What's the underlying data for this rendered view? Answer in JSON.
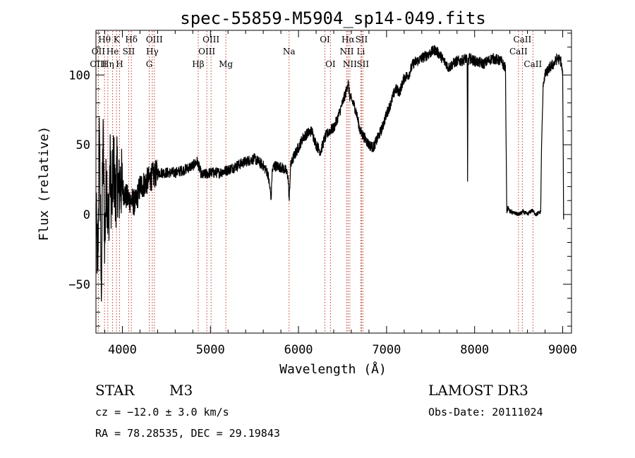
{
  "chart_data": {
    "type": "line",
    "title": "spec-55859-M5904_sp14-049.fits",
    "xlabel": "Wavelength (Å)",
    "ylabel": "Flux (relative)",
    "xlim": [
      3700,
      9100
    ],
    "ylim": [
      -85,
      132
    ],
    "x_ticks": [
      4000,
      5000,
      6000,
      7000,
      8000,
      9000
    ],
    "y_ticks": [
      -50,
      0,
      50,
      100
    ],
    "grid": false,
    "series": [
      {
        "name": "flux",
        "x": [
          3700,
          3720,
          3740,
          3760,
          3780,
          3800,
          3820,
          3840,
          3860,
          3880,
          3900,
          3920,
          3940,
          3960,
          3980,
          4000,
          4050,
          4100,
          4150,
          4200,
          4250,
          4300,
          4350,
          4400,
          4500,
          4600,
          4700,
          4800,
          4850,
          4900,
          5000,
          5100,
          5200,
          5300,
          5400,
          5500,
          5600,
          5650,
          5690,
          5700,
          5720,
          5800,
          5850,
          5880,
          5895,
          5910,
          5950,
          6000,
          6050,
          6100,
          6150,
          6200,
          6250,
          6300,
          6350,
          6400,
          6450,
          6500,
          6540,
          6563,
          6580,
          6620,
          6650,
          6700,
          6750,
          6800,
          6850,
          6900,
          6950,
          7000,
          7050,
          7100,
          7150,
          7200,
          7250,
          7300,
          7350,
          7400,
          7450,
          7500,
          7550,
          7600,
          7650,
          7680,
          7700,
          7750,
          7800,
          7850,
          7900,
          7915,
          7920,
          7925,
          7940,
          8000,
          8100,
          8200,
          8300,
          8350,
          8365,
          8380,
          8400,
          8500,
          8550,
          8600,
          8650,
          8700,
          8750,
          8760,
          8780,
          8800,
          8850,
          8900,
          8940,
          8980,
          9000,
          9010
        ],
        "values": [
          0,
          -40,
          60,
          -55,
          55,
          -20,
          30,
          -10,
          35,
          5,
          40,
          10,
          30,
          15,
          25,
          18,
          12,
          10,
          8,
          20,
          22,
          25,
          28,
          30,
          30,
          30,
          32,
          35,
          38,
          28,
          30,
          30,
          32,
          35,
          38,
          40,
          35,
          30,
          12,
          30,
          35,
          34,
          32,
          28,
          10,
          35,
          42,
          48,
          55,
          58,
          60,
          50,
          45,
          55,
          60,
          62,
          70,
          80,
          88,
          95,
          85,
          80,
          75,
          60,
          55,
          50,
          48,
          55,
          62,
          72,
          80,
          90,
          88,
          98,
          100,
          108,
          110,
          112,
          114,
          116,
          118,
          115,
          110,
          108,
          105,
          108,
          110,
          110,
          112,
          110,
          25,
          108,
          112,
          110,
          108,
          112,
          110,
          105,
          2,
          5,
          2,
          0,
          2,
          0,
          3,
          0,
          2,
          50,
          95,
          100,
          105,
          108,
          112,
          110,
          100,
          0
        ]
      }
    ],
    "emission_lines": [
      {
        "label": "Hθ",
        "x": 3797,
        "row": 1
      },
      {
        "label": "K",
        "x": 3934,
        "row": 1
      },
      {
        "label": "Hδ",
        "x": 4102,
        "row": 1
      },
      {
        "label": "OIII",
        "x": 4363,
        "row": 1
      },
      {
        "label": "OIII",
        "x": 5007,
        "row": 1
      },
      {
        "label": "OI",
        "x": 6300,
        "row": 1
      },
      {
        "label": "Hα",
        "x": 6563,
        "row": 1
      },
      {
        "label": "SII",
        "x": 6716,
        "row": 1
      },
      {
        "label": "CaII",
        "x": 8542,
        "row": 1
      },
      {
        "label": "OII",
        "x": 3727,
        "row": 2
      },
      {
        "label": "He",
        "x": 3889,
        "row": 2
      },
      {
        "label": "SII",
        "x": 4072,
        "row": 2
      },
      {
        "label": "Hγ",
        "x": 4340,
        "row": 2
      },
      {
        "label": "OIII",
        "x": 4959,
        "row": 2
      },
      {
        "label": "Na",
        "x": 5893,
        "row": 2
      },
      {
        "label": "NII",
        "x": 6548,
        "row": 2
      },
      {
        "label": "Li",
        "x": 6708,
        "row": 2
      },
      {
        "label": "CaII",
        "x": 8498,
        "row": 2
      },
      {
        "label": "OIII",
        "x": 3727,
        "row": 3
      },
      {
        "label": "Hη",
        "x": 3835,
        "row": 3
      },
      {
        "label": "H",
        "x": 3968,
        "row": 3
      },
      {
        "label": "G",
        "x": 4305,
        "row": 3
      },
      {
        "label": "Hβ",
        "x": 4861,
        "row": 3
      },
      {
        "label": "Mg",
        "x": 5175,
        "row": 3
      },
      {
        "label": "OI",
        "x": 6363,
        "row": 3
      },
      {
        "label": "NII",
        "x": 6583,
        "row": 3
      },
      {
        "label": "SII",
        "x": 6731,
        "row": 3
      },
      {
        "label": "CaII",
        "x": 8662,
        "row": 3
      }
    ]
  },
  "info": {
    "object_class": "STAR",
    "subclass": "M3",
    "survey": "LAMOST DR3",
    "cz": "cz = −12.0 ± 3.0 km/s",
    "obs_date": "Obs-Date: 20111024",
    "radec": "RA =  78.28535, DEC =  29.19843"
  }
}
